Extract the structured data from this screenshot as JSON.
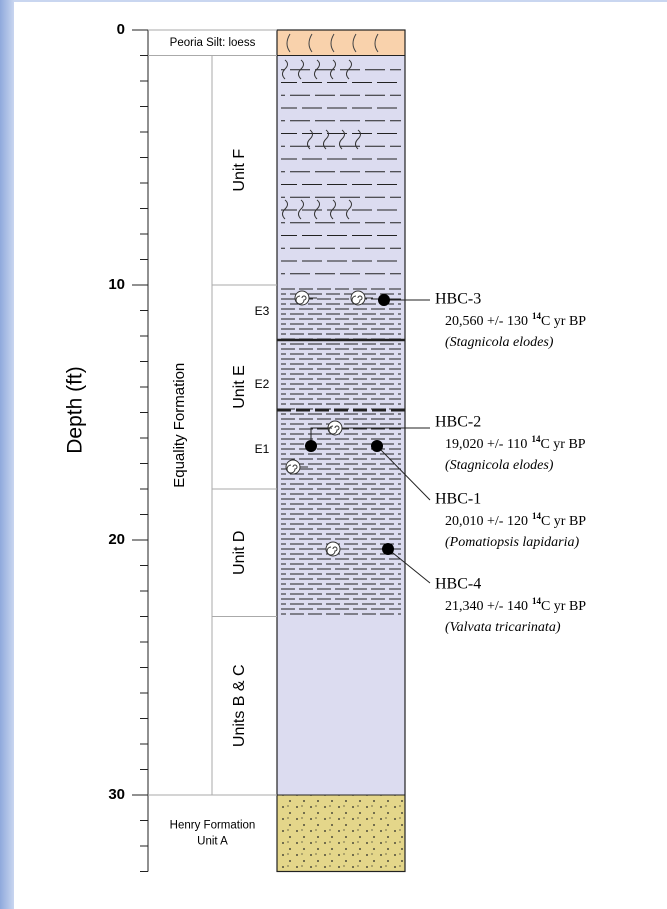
{
  "axis": {
    "title": "Depth (ft)",
    "ylim": [
      0,
      33
    ],
    "yticks": [
      0,
      10,
      20,
      30
    ]
  },
  "formations": [
    {
      "label": [
        "Peoria Silt: loess"
      ],
      "top": 0,
      "bottom": 1
    },
    {
      "label": [
        "Equality Formation"
      ],
      "top": 1,
      "bottom": 30
    },
    {
      "label": [
        "Henry Formation",
        "Unit A"
      ],
      "top": 30,
      "bottom": 33
    }
  ],
  "units": [
    {
      "label": "Unit F",
      "top": 1,
      "bottom": 10
    },
    {
      "label": "Unit E",
      "top": 10,
      "bottom": 18
    },
    {
      "label": "Unit D",
      "top": 18,
      "bottom": 23
    },
    {
      "label": "Units B & C",
      "top": 23,
      "bottom": 30
    }
  ],
  "subunits": [
    "E3",
    "E2",
    "E1"
  ],
  "samples": [
    {
      "id": "HBC-3",
      "age": "20,560 +/- 130",
      "isotope": "14",
      "unit": "C yr BP",
      "species": "(Stagnicola elodes)"
    },
    {
      "id": "HBC-2",
      "age": "19,020 +/- 110",
      "isotope": "14",
      "unit": "C yr BP",
      "species": "(Stagnicola elodes)"
    },
    {
      "id": "HBC-1",
      "age": "20,010 +/- 120",
      "isotope": "14",
      "unit": "C yr BP",
      "species": "(Pomatiopsis lapidaria)"
    },
    {
      "id": "HBC-4",
      "age": "21,340 +/- 140",
      "isotope": "14",
      "unit": "C yr BP",
      "species": "(Valvata tricarinata)"
    }
  ]
}
